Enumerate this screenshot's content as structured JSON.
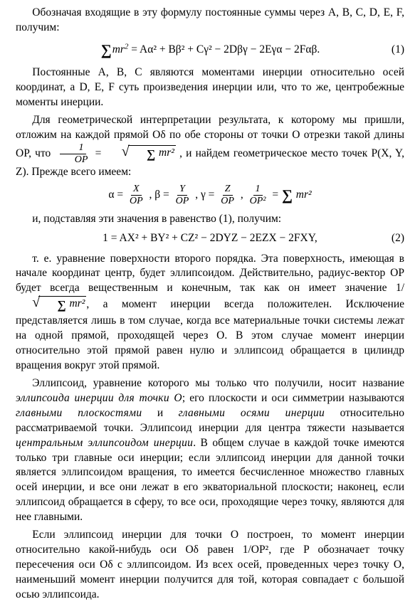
{
  "p1": "Обозначая входящие в эту формулу постоянные суммы через A, B, C, D, E, F, получим:",
  "eq1_sum": "∑",
  "eq1_a": "mr",
  "eq1_rest": " = Aα² + Bβ² + Cγ² − 2Dβγ − 2Eγα − 2Fαβ.",
  "eq1_num": "(1)",
  "p2": "Постоянные A, B, C являются моментами инерции относительно осей координат, а D, E, F суть произведения инерции или, что то же, центробежные моменты инерции.",
  "p3a": "Для геометрической интерпретации результата, к которому мы пришли, отложим на каждой прямой Oδ по обе стороны от точки O отрезки такой длины OP, что ",
  "p3_frac1_num": "1",
  "p3_frac1_den": "OP",
  "p3_mid": " = ",
  "p3_rad": "∑ mr²",
  "p3b": ", и найдем геометрическое место точек P(X, Y, Z). Прежде всего имеем:",
  "eq2_a": "α = ",
  "eq2_f1n": "X",
  "eq2_f1d": "OP",
  "eq2_c1": ",   β = ",
  "eq2_f2n": "Y",
  "eq2_f2d": "OP",
  "eq2_c2": ",   γ = ",
  "eq2_f3n": "Z",
  "eq2_f3d": "OP",
  "eq2_c3": ",   ",
  "eq2_f4n": "1",
  "eq2_f4d": "OP²",
  "eq2_c4": " = ",
  "eq2_sum": "∑",
  "eq2_end": " mr²",
  "p4": "и, подставляя эти значения в равенство (1), получим:",
  "eq3": "1 = AX² + BY² + CZ² − 2DYZ − 2EZX − 2FXY,",
  "eq3_num": "(2)",
  "p5a": "т. е. уравнение поверхности второго порядка. Эта поверхность, имеющая в начале координат центр, будет эллипсоидом. Действительно, радиус-вектор OP будет всегда вещественным и конечным, так как он имеет значение 1/",
  "p5_rad": "∑ mr²",
  "p5b": ", а момент инерции всегда положителен. Исключение представляется лишь в том случае, когда все материальные точки системы лежат на одной прямой, проходящей через O. В этом случае момент инерции относительно этой прямой равен нулю и эллипсоид обращается в цилиндр вращения вокруг этой прямой.",
  "p6a": "Эллипсоид, уравнение которого мы только что получили, носит название ",
  "p6def1": "эллипсоида инерции для точки O",
  "p6b": "; его плоскости и оси симметрии называются ",
  "p6def2": "главными плоскостями",
  "p6c": " и ",
  "p6def3": "главными осями инерции",
  "p6d": " относительно рассматриваемой точки. Эллипсоид инерции для центра тяжести называется ",
  "p6def4": "центральным эллипсоидом инерции",
  "p6e": ". В общем случае в каждой точке имеются только три главные оси инерции; если эллипсоид инерции для данной точки является эллипсоидом вращения, то имеется бесчисленное множество главных осей инерции, и все они лежат в его экваториальной плоскости; наконец, если эллипсоид обращается в сферу, то все оси, проходящие через точку, являются для нее главными.",
  "p7": "Если эллипсоид инерции для точки O построен, то момент инерции относительно какой-нибудь оси Oδ равен 1/OP², где P обозначает точку пересечения оси Oδ с эллипсоидом. Из всех осей, проведенных через точку O, наименьший момент инерции получится для той, которая совпадает с большой осью эллипсоида."
}
